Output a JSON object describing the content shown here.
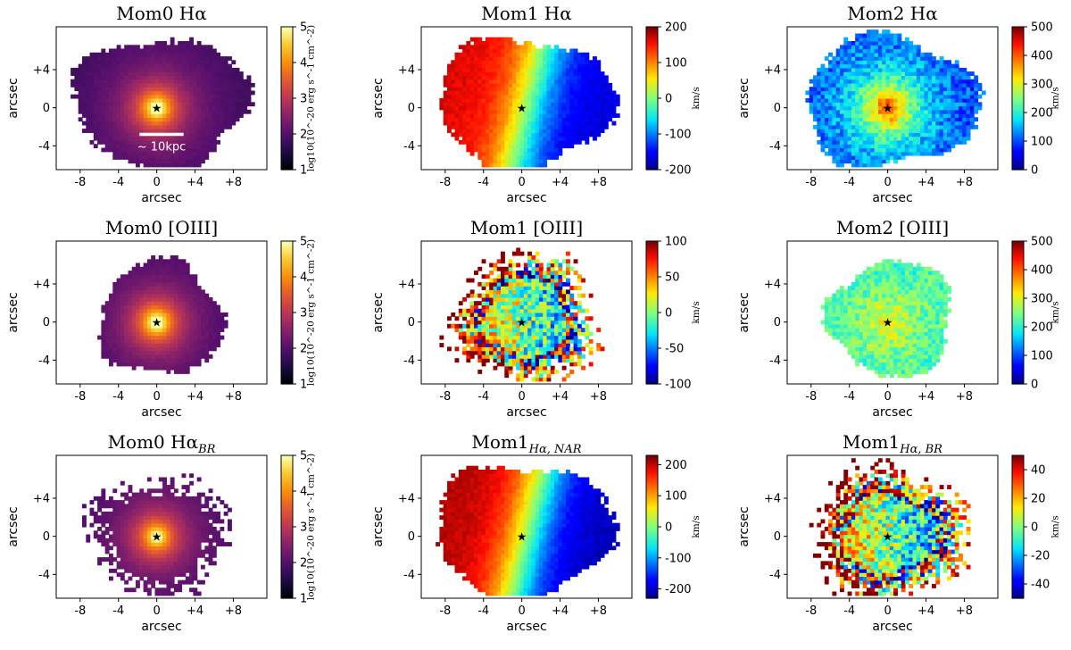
{
  "chart_data": [
    {
      "id": "mom0-ha",
      "type": "heatmap",
      "map": "mom0",
      "title": "Mom0 Hα",
      "xlabel": "arcsec",
      "ylabel": "arcsec",
      "x_ticks": [
        "-8",
        "-4",
        "0",
        "+4",
        "+8"
      ],
      "y_ticks": [
        "+4",
        "0",
        "-4"
      ],
      "xlim": [
        -10.5,
        11.5
      ],
      "ylim": [
        -6.5,
        8.5
      ],
      "colorbar": {
        "ticks": [
          "1",
          "2",
          "3",
          "4",
          "5"
        ],
        "range": [
          1,
          5
        ],
        "label": "log10(10^-20 erg s^-1 cm^-2)",
        "cmap": "inferno"
      },
      "extent": {
        "rx": 9.4,
        "ry": 7.0,
        "cx": 0.3,
        "cy": 0.6
      },
      "peak": 5.0,
      "scalebar": {
        "label": "~ 10kpc",
        "x_from": -1.8,
        "x_to": 2.8,
        "y": -2.8
      }
    },
    {
      "id": "mom1-ha",
      "type": "heatmap",
      "map": "velocity",
      "title": "Mom1 Hα",
      "xlabel": "arcsec",
      "ylabel": "arcsec",
      "x_ticks": [
        "-8",
        "-4",
        "0",
        "+4",
        "+8"
      ],
      "y_ticks": [
        "+4",
        "0",
        "-4"
      ],
      "xlim": [
        -10.5,
        11.5
      ],
      "ylim": [
        -6.5,
        8.5
      ],
      "colorbar": {
        "ticks": [
          "-200",
          "-100",
          "0",
          "100",
          "200"
        ],
        "range": [
          -200,
          200
        ],
        "label": "km/s",
        "cmap": "jet"
      },
      "extent": {
        "rx": 9.4,
        "ry": 7.0,
        "cx": 0.3,
        "cy": 0.6
      },
      "vmax": 170
    },
    {
      "id": "mom2-ha",
      "type": "heatmap",
      "map": "dispersion",
      "title": "Mom2 Hα",
      "xlabel": "arcsec",
      "ylabel": "arcsec",
      "x_ticks": [
        "-8",
        "-4",
        "0",
        "+4",
        "+8"
      ],
      "y_ticks": [
        "+4",
        "0",
        "-4"
      ],
      "xlim": [
        -10.5,
        11.5
      ],
      "ylim": [
        -6.5,
        8.5
      ],
      "colorbar": {
        "ticks": [
          "0",
          "100",
          "200",
          "300",
          "400",
          "500"
        ],
        "range": [
          0,
          500
        ],
        "label": "km/s",
        "cmap": "jet"
      },
      "extent": {
        "rx": 9.4,
        "ry": 7.0,
        "cx": 0.3,
        "cy": 0.6
      },
      "center_value": 450,
      "outer_value": 80
    },
    {
      "id": "mom0-oiii",
      "type": "heatmap",
      "map": "mom0",
      "title": "Mom0 [OIII]",
      "xlabel": "arcsec",
      "ylabel": "arcsec",
      "x_ticks": [
        "-8",
        "-4",
        "0",
        "+4",
        "+8"
      ],
      "y_ticks": [
        "+4",
        "0",
        "-4"
      ],
      "xlim": [
        -10.5,
        11.5
      ],
      "ylim": [
        -6.5,
        8.5
      ],
      "colorbar": {
        "ticks": [
          "1",
          "2",
          "3",
          "4",
          "5"
        ],
        "range": [
          1,
          5
        ],
        "label": "log10(10^-20 erg s^-1 cm^-2)",
        "cmap": "inferno"
      },
      "extent": {
        "rx": 6.6,
        "ry": 6.2,
        "cx": 0.4,
        "cy": 0.4
      },
      "peak": 5.0
    },
    {
      "id": "mom1-oiii",
      "type": "heatmap",
      "map": "noisy-velocity",
      "title": "Mom1 [OIII]",
      "xlabel": "arcsec",
      "ylabel": "arcsec",
      "x_ticks": [
        "-8",
        "-4",
        "0",
        "+4",
        "+8"
      ],
      "y_ticks": [
        "+4",
        "0",
        "-4"
      ],
      "xlim": [
        -10.5,
        11.5
      ],
      "ylim": [
        -6.5,
        8.5
      ],
      "colorbar": {
        "ticks": [
          "-100",
          "-50",
          "0",
          "50",
          "100"
        ],
        "range": [
          -100,
          100
        ],
        "label": "km/s",
        "cmap": "jet"
      },
      "extent": {
        "rx": 6.6,
        "ry": 6.2,
        "cx": 0.4,
        "cy": 0.4
      }
    },
    {
      "id": "mom2-oiii",
      "type": "heatmap",
      "map": "dispersion",
      "title": "Mom2 [OIII]",
      "xlabel": "arcsec",
      "ylabel": "arcsec",
      "x_ticks": [
        "-8",
        "-4",
        "0",
        "+4",
        "+8"
      ],
      "y_ticks": [
        "+4",
        "0",
        "-4"
      ],
      "xlim": [
        -10.5,
        11.5
      ],
      "ylim": [
        -6.5,
        8.5
      ],
      "colorbar": {
        "ticks": [
          "0",
          "100",
          "200",
          "300",
          "400",
          "500"
        ],
        "range": [
          0,
          500
        ],
        "label": "km/s",
        "cmap": "jet"
      },
      "extent": {
        "rx": 6.6,
        "ry": 6.2,
        "cx": 0.4,
        "cy": 0.4
      },
      "center_value": 330,
      "outer_value": 200
    },
    {
      "id": "mom0-ha-br",
      "type": "heatmap",
      "map": "mom0",
      "title": "Mom0 Hα",
      "title_sub": "BR",
      "xlabel": "arcsec",
      "ylabel": "arcsec",
      "x_ticks": [
        "-8",
        "-4",
        "0",
        "+4",
        "+8"
      ],
      "y_ticks": [
        "+4",
        "0",
        "-4"
      ],
      "xlim": [
        -10.5,
        11.5
      ],
      "ylim": [
        -6.5,
        8.5
      ],
      "colorbar": {
        "ticks": [
          "1",
          "2",
          "3",
          "4",
          "5"
        ],
        "range": [
          1,
          5
        ],
        "label": "log10(10^-20 erg s^-1 cm^-2)",
        "cmap": "inferno"
      },
      "extent": {
        "rx": 6.2,
        "ry": 5.6,
        "cx": 0.2,
        "cy": 0.0
      },
      "peak": 4.6
    },
    {
      "id": "mom1-ha-nar",
      "type": "heatmap",
      "map": "velocity",
      "title": "Mom1",
      "title_sub": "Hα, NAR",
      "xlabel": "arcsec",
      "ylabel": "arcsec",
      "x_ticks": [
        "-8",
        "-4",
        "0",
        "+4",
        "+8"
      ],
      "y_ticks": [
        "+4",
        "0",
        "-4"
      ],
      "xlim": [
        -10.5,
        11.5
      ],
      "ylim": [
        -6.5,
        8.5
      ],
      "colorbar": {
        "ticks": [
          "-200",
          "-100",
          "0",
          "100",
          "200"
        ],
        "range": [
          -230,
          230
        ],
        "label": "km/s",
        "cmap": "jet"
      },
      "extent": {
        "rx": 9.6,
        "ry": 7.2,
        "cx": 0.2,
        "cy": 0.6
      },
      "vmax": 210
    },
    {
      "id": "mom1-ha-br",
      "type": "heatmap",
      "map": "noisy-velocity",
      "title": "Mom1",
      "title_sub": "Hα, BR",
      "xlabel": "arcsec",
      "ylabel": "arcsec",
      "x_ticks": [
        "-8",
        "-4",
        "0",
        "+4",
        "+8"
      ],
      "y_ticks": [
        "+4",
        "0",
        "-4"
      ],
      "xlim": [
        -10.5,
        11.5
      ],
      "ylim": [
        -6.5,
        8.5
      ],
      "colorbar": {
        "ticks": [
          "-40",
          "-20",
          "0",
          "20",
          "40"
        ],
        "range": [
          -50,
          50
        ],
        "label": "km/s",
        "cmap": "jet"
      },
      "extent": {
        "rx": 7.0,
        "ry": 6.2,
        "cx": 0.3,
        "cy": 0.2
      }
    }
  ]
}
